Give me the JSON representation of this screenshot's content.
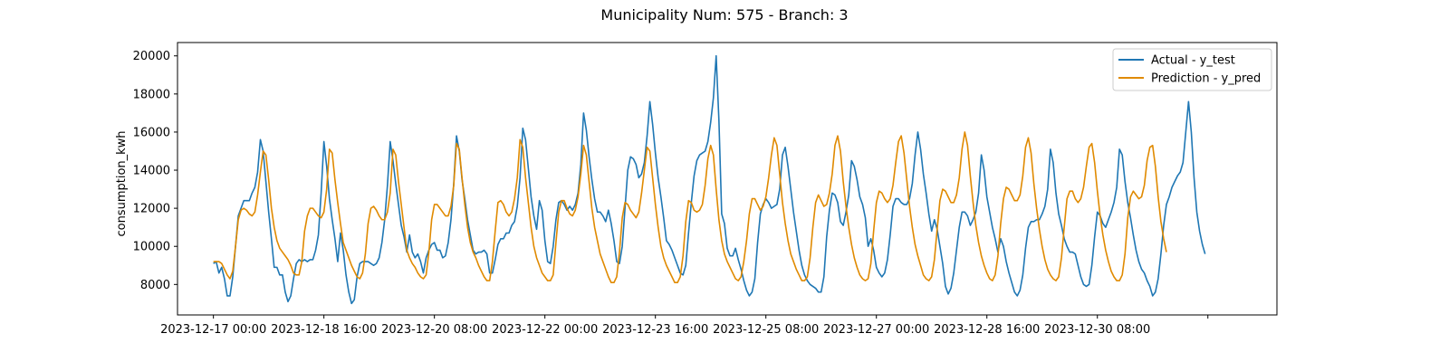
{
  "chart_data": {
    "type": "line",
    "title": "Municipality Num: 575 - Branch: 3",
    "xlabel": "",
    "ylabel": "consumption_kwh",
    "x_start": "2023-12-17 00:00",
    "x_step_hours": 1,
    "x_ticks": [
      "2023-12-17 00:00",
      "2023-12-18 16:00",
      "2023-12-20 08:00",
      "2023-12-22 00:00",
      "2023-12-23 16:00",
      "2023-12-25 08:00",
      "2023-12-27 00:00",
      "2023-12-28 16:00",
      "2023-12-30 08:00",
      "2024-01-01 00:00"
    ],
    "x_tick_labels": [
      "2023-12-17 00:00",
      "2023-12-18 16:00",
      "2023-12-20 08:00",
      "2023-12-22 00:00",
      "2023-12-23 16:00",
      "2023-12-25 08:00",
      "2023-12-27 00:00",
      "2023-12-28 16:00",
      "2023-12-30 08:00",
      ""
    ],
    "x_range": [
      "2023-12-16 11:00",
      "2024-01-02 01:00"
    ],
    "y_ticks": [
      8000,
      10000,
      12000,
      14000,
      16000,
      18000,
      20000
    ],
    "ylim": [
      6400,
      20700
    ],
    "grid": false,
    "legend_position": "top-right",
    "series": [
      {
        "name": "Actual - y_test",
        "color": "#1f77b4",
        "values": [
          9100,
          9200,
          8600,
          8900,
          8300,
          7400,
          7400,
          8400,
          10000,
          11600,
          12000,
          12400,
          12400,
          12400,
          12800,
          13100,
          13900,
          15600,
          15000,
          13400,
          11800,
          10400,
          8900,
          8900,
          8500,
          8500,
          7600,
          7100,
          7400,
          8300,
          9100,
          9300,
          9200,
          9300,
          9200,
          9300,
          9300,
          9800,
          10600,
          12800,
          15500,
          14200,
          12500,
          11400,
          10400,
          9200,
          10700,
          9800,
          8500,
          7600,
          7000,
          7200,
          8400,
          9100,
          9200,
          9200,
          9200,
          9100,
          9000,
          9100,
          9400,
          10200,
          11400,
          13200,
          15500,
          14500,
          13300,
          12200,
          11100,
          10500,
          9700,
          10600,
          9700,
          9400,
          9600,
          9200,
          8600,
          9400,
          9800,
          10100,
          10200,
          9800,
          9800,
          9400,
          9500,
          10200,
          11400,
          13300,
          15800,
          15000,
          13500,
          12500,
          11400,
          10600,
          9800,
          9600,
          9700,
          9700,
          9800,
          9600,
          8600,
          8600,
          9300,
          10100,
          10400,
          10400,
          10700,
          10700,
          11100,
          11300,
          12100,
          13600,
          16200,
          15600,
          14100,
          12600,
          11600,
          10900,
          12400,
          11900,
          10300,
          9200,
          9100,
          10000,
          11400,
          12300,
          12400,
          12200,
          11900,
          12100,
          11900,
          12200,
          12800,
          14300,
          17000,
          16100,
          14700,
          13500,
          12500,
          11800,
          11800,
          11600,
          11300,
          11900,
          11200,
          10300,
          9200,
          9100,
          10000,
          12000,
          14000,
          14700,
          14600,
          14300,
          13600,
          13800,
          14400,
          15800,
          17600,
          16400,
          14900,
          13600,
          12600,
          11500,
          10300,
          10100,
          9800,
          9400,
          9000,
          8600,
          8500,
          9000,
          10700,
          12300,
          13700,
          14500,
          14800,
          14900,
          15000,
          15500,
          16500,
          17800,
          20000,
          16600,
          11700,
          11200,
          9900,
          9500,
          9500,
          9900,
          9300,
          8800,
          8200,
          7700,
          7400,
          7600,
          8300,
          10200,
          11700,
          12200,
          12500,
          12300,
          12000,
          12100,
          12200,
          13000,
          14800,
          15200,
          14200,
          13000,
          11800,
          10800,
          9800,
          9000,
          8500,
          8200,
          8000,
          7900,
          7800,
          7600,
          7600,
          8400,
          10500,
          11900,
          12800,
          12700,
          12300,
          11300,
          11100,
          11800,
          12700,
          14500,
          14200,
          13500,
          12600,
          12200,
          11500,
          10000,
          10400,
          9800,
          8900,
          8600,
          8400,
          8600,
          9300,
          10600,
          12100,
          12500,
          12500,
          12300,
          12200,
          12200,
          12500,
          13300,
          14800,
          16000,
          15100,
          13800,
          12800,
          11700,
          10800,
          11400,
          10900,
          10000,
          9100,
          7900,
          7500,
          7800,
          8600,
          9800,
          11000,
          11800,
          11800,
          11600,
          11100,
          11400,
          11800,
          12800,
          14800,
          14000,
          12600,
          11800,
          11000,
          10400,
          9700,
          10400,
          10000,
          9200,
          8600,
          8100,
          7600,
          7400,
          7700,
          8500,
          9900,
          11000,
          11300,
          11300,
          11400,
          11400,
          11700,
          12100,
          13000,
          15100,
          14400,
          12800,
          11700,
          11100,
          10400,
          10000,
          9700,
          9700,
          9600,
          9000,
          8400,
          8000,
          7900,
          8000,
          9000,
          10500,
          11800,
          11600,
          11200,
          11000,
          11400,
          11800,
          12300,
          13100,
          15100,
          14800,
          13400,
          12300,
          11500,
          10600,
          9800,
          9200,
          8800,
          8600,
          8200,
          7900,
          7400,
          7600,
          8300,
          9600,
          11100,
          12200,
          12600,
          13100,
          13400,
          13700,
          13900,
          14400,
          16000,
          17600,
          16000,
          13600,
          11800,
          10800,
          10100,
          9600
        ]
      },
      {
        "name": "Prediction - y_pred",
        "color": "#e08a00",
        "values": [
          9200,
          9200,
          9200,
          9100,
          8800,
          8500,
          8300,
          8700,
          10000,
          11400,
          11900,
          12000,
          11900,
          11700,
          11600,
          11800,
          12700,
          13900,
          15000,
          14800,
          13500,
          12000,
          11000,
          10300,
          9900,
          9700,
          9500,
          9300,
          9000,
          8600,
          8500,
          8500,
          9200,
          10800,
          11600,
          12000,
          12000,
          11800,
          11600,
          11500,
          11800,
          13000,
          15100,
          14900,
          13500,
          12300,
          11200,
          10200,
          9800,
          9400,
          9000,
          8700,
          8400,
          8300,
          8600,
          9600,
          11200,
          12000,
          12100,
          11900,
          11600,
          11400,
          11400,
          11800,
          12800,
          15100,
          14800,
          13400,
          12200,
          11000,
          9800,
          9400,
          9100,
          8900,
          8600,
          8400,
          8300,
          8500,
          9700,
          11400,
          12200,
          12200,
          12000,
          11800,
          11600,
          11600,
          12100,
          13200,
          15400,
          15100,
          13600,
          12200,
          11000,
          10200,
          9700,
          9400,
          9000,
          8700,
          8400,
          8200,
          8200,
          9200,
          10800,
          12300,
          12400,
          12200,
          11800,
          11600,
          11800,
          12500,
          13600,
          15600,
          15200,
          13600,
          12300,
          11000,
          10000,
          9400,
          9000,
          8600,
          8400,
          8200,
          8200,
          8500,
          10200,
          11800,
          12400,
          12400,
          12000,
          11700,
          11600,
          11900,
          12600,
          13800,
          15300,
          14800,
          13400,
          12000,
          11000,
          10300,
          9600,
          9200,
          8800,
          8400,
          8100,
          8100,
          8400,
          9700,
          11500,
          12300,
          12200,
          11900,
          11700,
          11500,
          11800,
          12800,
          14000,
          15200,
          15000,
          13600,
          12200,
          11000,
          10000,
          9400,
          9000,
          8700,
          8400,
          8100,
          8100,
          8400,
          9500,
          11300,
          12400,
          12300,
          11900,
          11800,
          11900,
          12200,
          13200,
          14600,
          15300,
          14800,
          13000,
          11400,
          10300,
          9600,
          9200,
          8900,
          8600,
          8300,
          8200,
          8400,
          9200,
          10300,
          11700,
          12500,
          12500,
          12200,
          11900,
          12100,
          12600,
          13600,
          14800,
          15700,
          15300,
          13800,
          12300,
          11200,
          10300,
          9600,
          9200,
          8800,
          8500,
          8200,
          8200,
          8400,
          9400,
          11000,
          12300,
          12700,
          12400,
          12100,
          12200,
          12800,
          13800,
          15300,
          15800,
          15000,
          13400,
          12100,
          11000,
          10100,
          9400,
          8900,
          8500,
          8300,
          8200,
          8300,
          9100,
          10800,
          12300,
          12900,
          12800,
          12500,
          12300,
          12500,
          13200,
          14400,
          15500,
          15800,
          14900,
          13500,
          12100,
          11000,
          10100,
          9500,
          9000,
          8500,
          8300,
          8200,
          8400,
          9300,
          10900,
          12400,
          13000,
          12900,
          12600,
          12300,
          12300,
          12700,
          13600,
          15100,
          16000,
          15300,
          13700,
          12300,
          11100,
          10200,
          9500,
          9000,
          8600,
          8300,
          8200,
          8500,
          9500,
          11200,
          12500,
          13100,
          13000,
          12700,
          12400,
          12400,
          12700,
          13700,
          15200,
          15700,
          14900,
          13300,
          12000,
          10900,
          10000,
          9300,
          8800,
          8500,
          8300,
          8200,
          8400,
          9400,
          11000,
          12500,
          12900,
          12900,
          12500,
          12300,
          12500,
          13100,
          14200,
          15200,
          15400,
          14400,
          12900,
          11600,
          10600,
          9800,
          9200,
          8700,
          8400,
          8200,
          8200,
          8500,
          9600,
          11500,
          12600,
          12900,
          12700,
          12500,
          12600,
          13200,
          14500,
          15200,
          15300,
          14200,
          12600,
          11300,
          10400,
          9700
        ]
      }
    ]
  }
}
